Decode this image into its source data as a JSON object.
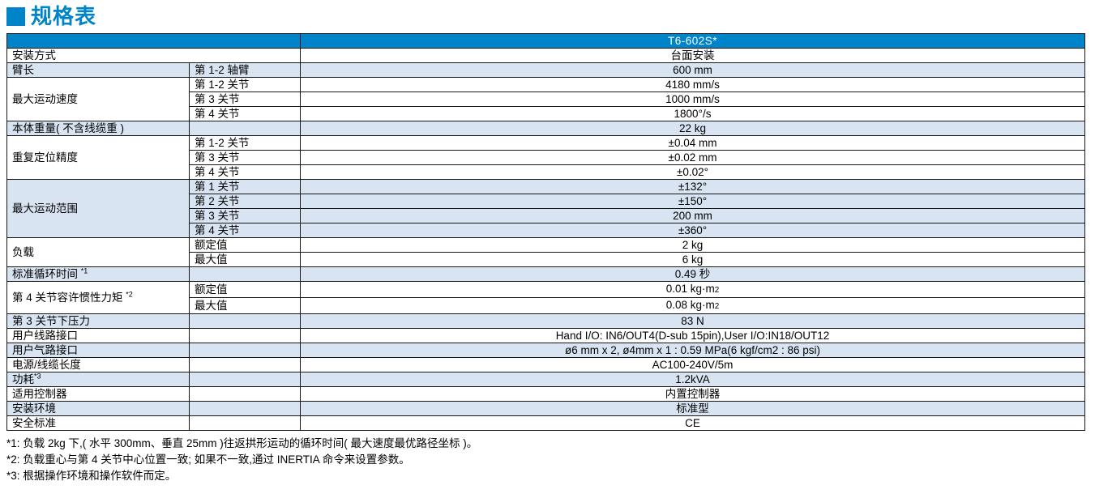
{
  "title": "规格表",
  "colors": {
    "brand_blue": "#0084C9",
    "row_shade": "#D8E4F2",
    "header_text": "#FFFFFF"
  },
  "table": {
    "model": "T6-602S*",
    "rows": [
      {
        "label": "安装方式",
        "merge": true,
        "value": "台面安装",
        "shade": false
      },
      {
        "label": "臂长",
        "sub": "第 1-2 轴臂",
        "value": "600 mm",
        "shade": true
      },
      {
        "label": "最大运动速度",
        "rowspan": 3,
        "sub": "第 1-2 关节",
        "value": "4180 mm/s",
        "shade": false
      },
      {
        "sub": "第 3 关节",
        "value": "1000 mm/s",
        "shade": false
      },
      {
        "sub": "第 4 关节",
        "value": "1800°/s",
        "shade": false
      },
      {
        "label": "本体重量( 不含线缆重 )",
        "sub": "",
        "value": "22 kg",
        "shade": true
      },
      {
        "label": "重复定位精度",
        "rowspan": 3,
        "sub": "第 1-2 关节",
        "value": "±0.04 mm",
        "shade": false
      },
      {
        "sub": "第 3 关节",
        "value": "±0.02 mm",
        "shade": false
      },
      {
        "sub": "第 4 关节",
        "value": "±0.02°",
        "shade": false
      },
      {
        "label": "最大运动范围",
        "rowspan": 4,
        "sub": "第 1 关节",
        "value": "±132°",
        "shade": true
      },
      {
        "sub": "第 2 关节",
        "value": "±150°",
        "shade": true
      },
      {
        "sub": "第 3 关节",
        "value": "200 mm",
        "shade": true
      },
      {
        "sub": "第 4 关节",
        "value": "±360°",
        "shade": true
      },
      {
        "label": "负载",
        "rowspan": 2,
        "sub": "额定值",
        "value": "2 kg",
        "shade": false
      },
      {
        "sub": "最大值",
        "value": "6 kg",
        "shade": false
      },
      {
        "label": "标准循环时间 *1",
        "sub": "",
        "value": "0.49 秒",
        "shade": true
      },
      {
        "label": "第 4 关节容许惯性力矩 *2",
        "rowspan": 2,
        "sub": "额定值",
        "value": "0.01 kg·m2",
        "shade": false
      },
      {
        "sub": "最大值",
        "value": "0.08 kg·m2",
        "shade": false
      },
      {
        "label": "第 3 关节下压力",
        "sub": "",
        "value": "83 N",
        "shade": true
      },
      {
        "label": "用户线路接口",
        "sub": "",
        "value": "Hand I/O: IN6/OUT4(D-sub 15pin),User I/O:IN18/OUT12",
        "shade": false
      },
      {
        "label": "用户气路接口",
        "sub": "",
        "value": "ø6 mm x 2, ø4mm x 1 : 0.59 MPa(6 kgf/cm2 : 86 psi)",
        "shade": true
      },
      {
        "label": "电源/线缆长度",
        "sub": "",
        "value": "AC100-240V/5m",
        "shade": false
      },
      {
        "label": "功耗*3",
        "sub": "",
        "value": "1.2kVA",
        "shade": true
      },
      {
        "label": "适用控制器",
        "sub": "",
        "value": "内置控制器",
        "shade": false
      },
      {
        "label": "安装环境",
        "sub": "",
        "value": "标准型",
        "shade": true
      },
      {
        "label": "安全标准",
        "sub": "",
        "value": "CE",
        "shade": false
      }
    ]
  },
  "footnotes": [
    "*1: 负载 2kg 下,( 水平 300mm、垂直 25mm )往返拱形运动的循环时间( 最大速度最优路径坐标 )。",
    "*2: 负载重心与第 4 关节中心位置一致; 如果不一致,通过 INERTIA 命令来设置参数。",
    "*3: 根据操作环境和操作软件而定。"
  ]
}
